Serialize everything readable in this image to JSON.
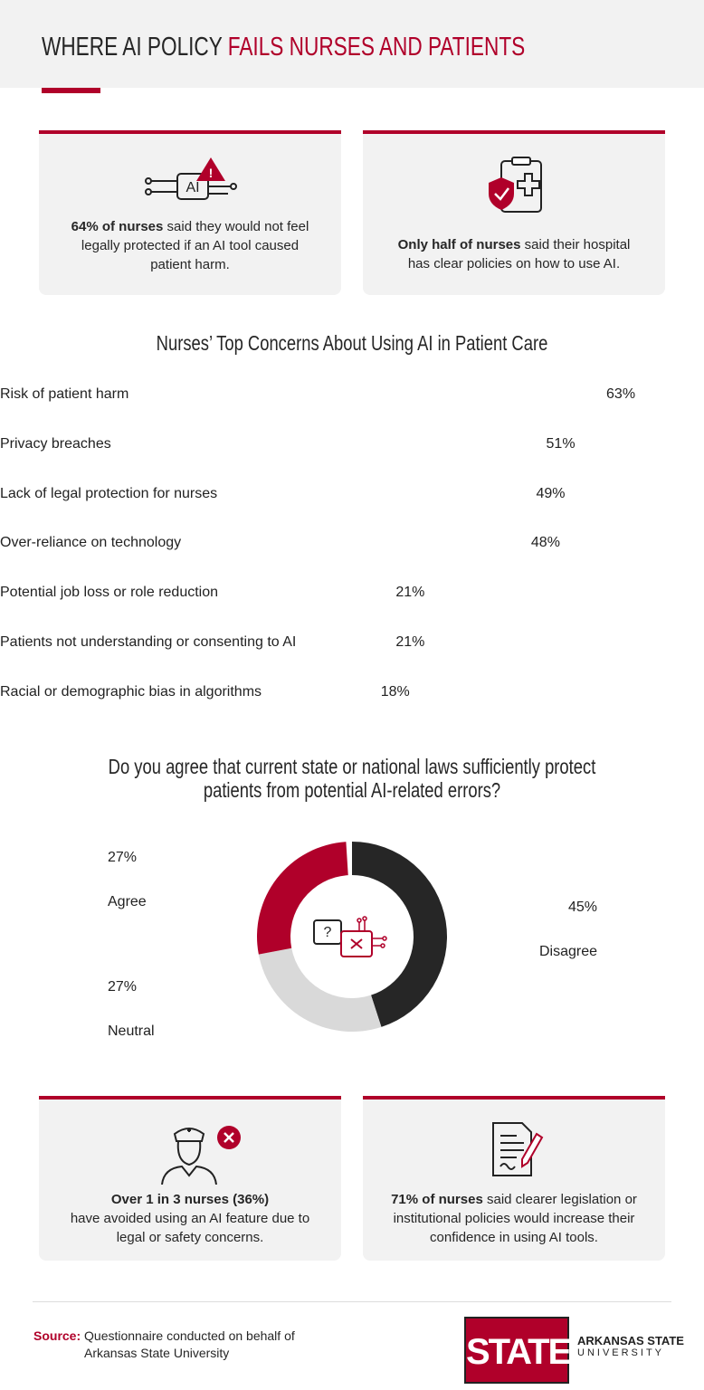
{
  "header": {
    "title_start": "WHERE AI POLICY",
    "title_highlight": "FAILS NURSES AND PATIENTS"
  },
  "cards": [
    {
      "bold": "64% of nurses",
      "text": "said they would not feel legally protected if an AI tool caused patient harm."
    },
    {
      "bold": "Only half of nurses",
      "text": "said their hospital has clear policies on how to use AI."
    },
    {
      "bold": "Over 1 in 3 nurses (36%)",
      "text": "have avoided using an AI feature due to legal or safety concerns."
    },
    {
      "bold": "71% of nurses",
      "text": "said clearer legislation or institutional policies would increase their confidence in using AI tools."
    }
  ],
  "chart_data": [
    {
      "type": "bar",
      "title": "Nurses’ Top Concerns About Using AI in Patient Care",
      "categories": [
        "Risk of patient harm",
        "Privacy breaches",
        "Lack of legal protection for nurses",
        "Over-reliance on technology",
        "Potential job loss or role reduction",
        "Patients not understanding or\nconsenting to AI",
        "Racial or demographic\nbias in algorithms"
      ],
      "values": [
        63,
        51,
        49,
        48,
        21,
        21,
        18
      ],
      "value_labels": [
        "63%",
        "51%",
        "49%",
        "48%",
        "21%",
        "21%",
        "18%"
      ],
      "colors": [
        "#b0002a",
        "#bf2f4b",
        "#cc5670",
        "#d3667d",
        "#e290a1",
        "#e290a1",
        "#edbdc7"
      ]
    },
    {
      "type": "donut",
      "title": "Do you agree that current state or national laws sufficiently protect\npatients from potential AI-related errors?",
      "categories": [
        "Disagree",
        "Neutral",
        "Agree"
      ],
      "values": [
        45,
        27,
        27
      ],
      "value_labels": [
        "45%",
        "27%",
        "27%"
      ],
      "colors": [
        "#262626",
        "#d9d9d9",
        "#b0002a"
      ]
    }
  ],
  "source": {
    "label": "Source:",
    "text": "Questionnaire conducted on behalf of\nArkansas State University"
  },
  "logo": {
    "mark": "STATE",
    "name": "ARKANSAS STATE",
    "sub": "UNIVERSITY"
  }
}
